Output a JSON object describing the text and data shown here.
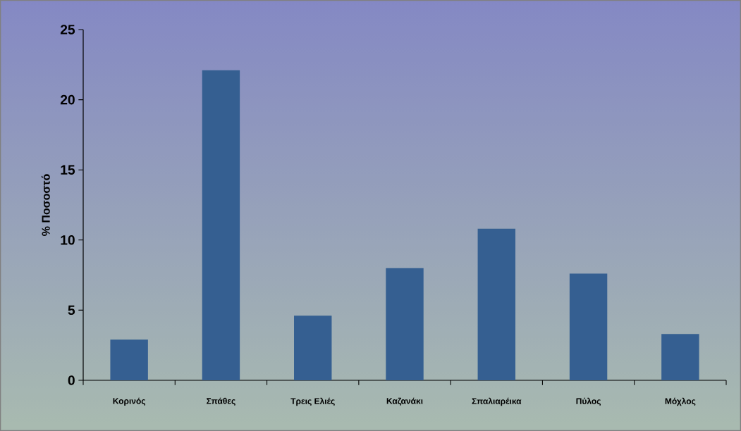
{
  "chart_data": {
    "type": "bar",
    "ylabel": "% Ποσοστό",
    "categories": [
      "Κορινός",
      "Σπάθες",
      "Τρεις Ελιές",
      "Καζανάκι",
      "Σπαλιαρέικα",
      "Πύλος",
      "Μόχλος"
    ],
    "values": [
      2.9,
      22.1,
      4.6,
      8.0,
      10.8,
      7.6,
      3.3
    ],
    "color": "#355f91",
    "ylim": [
      0,
      25
    ],
    "yticks": [
      0,
      5,
      10,
      15,
      20,
      25
    ],
    "grid": false
  }
}
